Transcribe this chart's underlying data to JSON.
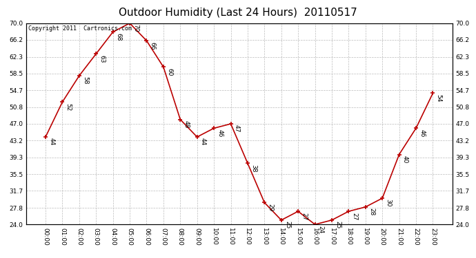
{
  "title": "Outdoor Humidity (Last 24 Hours)  20110517",
  "copyright_text": "Copyright 2011  Cartronics.com",
  "hours": [
    "00:00",
    "01:00",
    "02:00",
    "03:00",
    "04:00",
    "05:00",
    "06:00",
    "07:00",
    "08:00",
    "09:00",
    "10:00",
    "11:00",
    "12:00",
    "13:00",
    "14:00",
    "15:00",
    "16:00",
    "17:00",
    "18:00",
    "19:00",
    "20:00",
    "21:00",
    "22:00",
    "23:00"
  ],
  "values": [
    44,
    52,
    58,
    63,
    68,
    70,
    66,
    60,
    48,
    44,
    46,
    47,
    38,
    29,
    25,
    27,
    24,
    25,
    27,
    28,
    30,
    40,
    46,
    54
  ],
  "ylim": [
    24.0,
    70.0
  ],
  "yticks": [
    24.0,
    27.8,
    31.7,
    35.5,
    39.3,
    43.2,
    47.0,
    50.8,
    54.7,
    58.5,
    62.3,
    66.2,
    70.0
  ],
  "line_color": "#bb0000",
  "marker_color": "#bb0000",
  "bg_color": "#ffffff",
  "grid_color": "#bbbbbb",
  "title_fontsize": 11,
  "label_fontsize": 6.5,
  "annot_fontsize": 6.5,
  "copyright_fontsize": 6
}
